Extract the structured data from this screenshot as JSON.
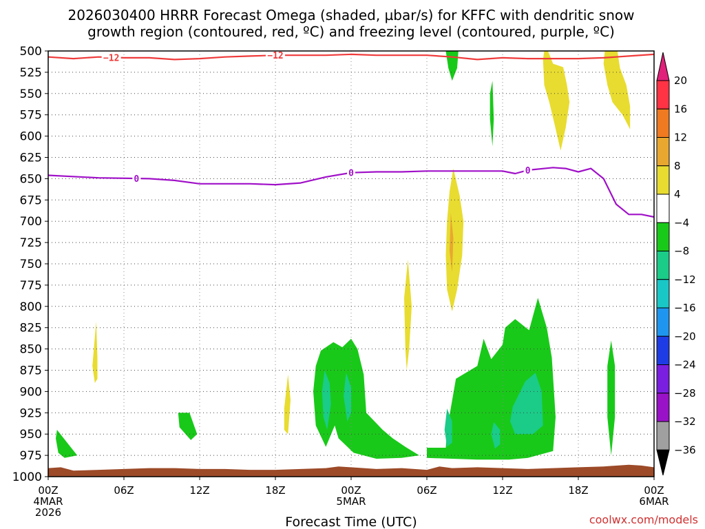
{
  "chart_data": {
    "type": "heatmap",
    "title_line1": "2026030400 HRRR Forecast Omega (shaded, µbar/s) for KFFC with dendritic snow",
    "title_line2": "growth region (contoured, red, ºC) and freezing level (contoured, purple, ºC)",
    "xlabel": "Forecast Time (UTC)",
    "credit": "coolwx.com/models",
    "x_range_hours": [
      0,
      48
    ],
    "y_range_mb": [
      500,
      1000
    ],
    "y_ticks": [
      "500",
      "525",
      "550",
      "575",
      "600",
      "625",
      "650",
      "675",
      "700",
      "725",
      "750",
      "775",
      "800",
      "825",
      "850",
      "875",
      "900",
      "925",
      "950",
      "975",
      "1000"
    ],
    "x_ticks": [
      {
        "hour": 0,
        "lines": [
          "00Z",
          "4MAR",
          "2026"
        ]
      },
      {
        "hour": 6,
        "lines": [
          "06Z"
        ]
      },
      {
        "hour": 12,
        "lines": [
          "12Z"
        ]
      },
      {
        "hour": 18,
        "lines": [
          "18Z"
        ]
      },
      {
        "hour": 24,
        "lines": [
          "00Z",
          "5MAR"
        ]
      },
      {
        "hour": 30,
        "lines": [
          "06Z"
        ]
      },
      {
        "hour": 36,
        "lines": [
          "12Z"
        ]
      },
      {
        "hour": 42,
        "lines": [
          "18Z"
        ]
      },
      {
        "hour": 48,
        "lines": [
          "00Z",
          "6MAR"
        ]
      }
    ],
    "colorbar": {
      "levels": [
        "20",
        "16",
        "12",
        "8",
        "4",
        "−4",
        "−8",
        "−12",
        "−16",
        "−20",
        "−24",
        "−28",
        "−32",
        "−36"
      ],
      "colors": [
        "#ff3344",
        "#f07a20",
        "#e8a830",
        "#e8dc30",
        "#ffffff",
        "#19c919",
        "#1acc88",
        "#19c7c7",
        "#1e96f0",
        "#1e3ce6",
        "#7a1ee0",
        "#9a12c8",
        "#a0a0a0"
      ],
      "top_arrow_color": "#e0207a",
      "bottom_arrow_color": "#000000"
    },
    "dgz_contour": {
      "label": "−12",
      "color": "#f03a3a",
      "points": [
        [
          0,
          507
        ],
        [
          2,
          509
        ],
        [
          4,
          507
        ],
        [
          6,
          508
        ],
        [
          8,
          508
        ],
        [
          10,
          510
        ],
        [
          12,
          509
        ],
        [
          14,
          507
        ],
        [
          16,
          506
        ],
        [
          18,
          505
        ],
        [
          20,
          505
        ],
        [
          22,
          505
        ],
        [
          24,
          504
        ],
        [
          26,
          505
        ],
        [
          28,
          505
        ],
        [
          30,
          505
        ],
        [
          32,
          507
        ],
        [
          34,
          510
        ],
        [
          36,
          508
        ],
        [
          38,
          509
        ],
        [
          40,
          509
        ],
        [
          42,
          509
        ],
        [
          44,
          508
        ],
        [
          46,
          506
        ],
        [
          48,
          504
        ]
      ],
      "label_hours": [
        5,
        18
      ]
    },
    "freezing_contour": {
      "label": "0",
      "color": "#a010c8",
      "points": [
        [
          0,
          646
        ],
        [
          4,
          649
        ],
        [
          8,
          650
        ],
        [
          10,
          652
        ],
        [
          12,
          656
        ],
        [
          16,
          656
        ],
        [
          18,
          657
        ],
        [
          20,
          655
        ],
        [
          22,
          648
        ],
        [
          24,
          643
        ],
        [
          26,
          642
        ],
        [
          28,
          642
        ],
        [
          30,
          641
        ],
        [
          32,
          641
        ],
        [
          34,
          641
        ],
        [
          36,
          641
        ],
        [
          37,
          644
        ],
        [
          38,
          640
        ],
        [
          40,
          637
        ],
        [
          41,
          638
        ],
        [
          42,
          642
        ],
        [
          43,
          638
        ],
        [
          44,
          650
        ],
        [
          45,
          680
        ],
        [
          46,
          692
        ],
        [
          47,
          692
        ],
        [
          48,
          695
        ]
      ],
      "label_hours": [
        7,
        24,
        38
      ]
    },
    "omega_regions": [
      {
        "level": 4,
        "color": "#e8dc30",
        "points": [
          [
            39.3,
            500
          ],
          [
            39.6,
            500
          ],
          [
            40,
            515
          ],
          [
            40.8,
            519
          ],
          [
            41.1,
            540
          ],
          [
            41.3,
            560
          ],
          [
            41.0,
            590
          ],
          [
            40.6,
            617
          ],
          [
            40.1,
            585
          ],
          [
            39.7,
            560
          ],
          [
            39.3,
            540
          ],
          [
            39.2,
            510
          ]
        ]
      },
      {
        "level": 4,
        "color": "#e8dc30",
        "points": [
          [
            44.1,
            500
          ],
          [
            45.1,
            500
          ],
          [
            45.3,
            520
          ],
          [
            45.8,
            540
          ],
          [
            46.1,
            565
          ],
          [
            46.1,
            592
          ],
          [
            45.5,
            575
          ],
          [
            44.7,
            560
          ],
          [
            44.3,
            540
          ],
          [
            44.0,
            515
          ]
        ]
      },
      {
        "level": 4,
        "color": "#e8dc30",
        "points": [
          [
            32.1,
            638
          ],
          [
            32.6,
            670
          ],
          [
            32.9,
            700
          ],
          [
            32.8,
            740
          ],
          [
            32.4,
            780
          ],
          [
            32.0,
            806
          ],
          [
            31.6,
            780
          ],
          [
            31.5,
            740
          ],
          [
            31.6,
            700
          ],
          [
            31.8,
            665
          ]
        ]
      },
      {
        "level": 8,
        "color": "#e8a830",
        "points": [
          [
            31.9,
            690
          ],
          [
            32.1,
            720
          ],
          [
            32.0,
            760
          ],
          [
            31.8,
            735
          ]
        ]
      },
      {
        "level": 4,
        "color": "#e8dc30",
        "points": [
          [
            28.5,
            745
          ],
          [
            28.8,
            800
          ],
          [
            28.6,
            850
          ],
          [
            28.4,
            875
          ],
          [
            28.3,
            850
          ],
          [
            28.2,
            790
          ]
        ]
      },
      {
        "level": 4,
        "color": "#e8dc30",
        "points": [
          [
            3.8,
            818
          ],
          [
            3.9,
            860
          ],
          [
            3.9,
            885
          ],
          [
            3.7,
            890
          ],
          [
            3.5,
            870
          ]
        ]
      },
      {
        "level": 4,
        "color": "#e8dc30",
        "points": [
          [
            19.0,
            880
          ],
          [
            19.2,
            910
          ],
          [
            19.0,
            950
          ],
          [
            18.7,
            945
          ],
          [
            18.7,
            920
          ]
        ]
      },
      {
        "level": -4,
        "color": "#19c919",
        "points": [
          [
            31.5,
            500
          ],
          [
            32.5,
            500
          ],
          [
            32.4,
            520
          ],
          [
            32.0,
            535
          ],
          [
            31.7,
            520
          ]
        ]
      },
      {
        "level": -4,
        "color": "#19c919",
        "points": [
          [
            35.2,
            535
          ],
          [
            35.3,
            580
          ],
          [
            35.2,
            612
          ],
          [
            35.0,
            580
          ],
          [
            35.0,
            550
          ]
        ]
      },
      {
        "level": -4,
        "color": "#19c919",
        "points": [
          [
            0.7,
            945
          ],
          [
            1.5,
            960
          ],
          [
            2.3,
            975
          ],
          [
            1.3,
            978
          ],
          [
            0.8,
            972
          ],
          [
            0.6,
            955
          ]
        ]
      },
      {
        "level": -4,
        "color": "#19c919",
        "points": [
          [
            10.3,
            925
          ],
          [
            11.2,
            925
          ],
          [
            11.8,
            950
          ],
          [
            11.3,
            957
          ],
          [
            10.4,
            942
          ]
        ]
      },
      {
        "level": -4,
        "color": "#19c919",
        "points": [
          [
            21.6,
            852
          ],
          [
            22.6,
            842
          ],
          [
            23.3,
            848
          ],
          [
            24.0,
            838
          ],
          [
            24.5,
            850
          ],
          [
            25.0,
            880
          ],
          [
            25.2,
            925
          ],
          [
            26.5,
            945
          ],
          [
            27.3,
            955
          ],
          [
            28.3,
            965
          ],
          [
            29.4,
            975
          ],
          [
            28.0,
            978
          ],
          [
            26.0,
            979
          ],
          [
            24.2,
            972
          ],
          [
            23.0,
            955
          ],
          [
            22.7,
            940
          ],
          [
            22.0,
            965
          ],
          [
            21.2,
            940
          ],
          [
            21.0,
            900
          ],
          [
            21.2,
            870
          ]
        ]
      },
      {
        "level": -8,
        "color": "#1acc88",
        "points": [
          [
            21.9,
            875
          ],
          [
            22.3,
            890
          ],
          [
            22.4,
            915
          ],
          [
            22.1,
            945
          ],
          [
            21.8,
            930
          ],
          [
            21.7,
            900
          ]
        ]
      },
      {
        "level": -8,
        "color": "#1acc88",
        "points": [
          [
            23.6,
            878
          ],
          [
            24.0,
            895
          ],
          [
            24.0,
            925
          ],
          [
            23.7,
            935
          ],
          [
            23.4,
            905
          ]
        ]
      },
      {
        "level": -4,
        "color": "#19c919",
        "points": [
          [
            30.0,
            966
          ],
          [
            31.5,
            966
          ],
          [
            31.6,
            945
          ],
          [
            32.3,
            885
          ],
          [
            34.0,
            870
          ],
          [
            34.5,
            838
          ],
          [
            35.1,
            862
          ],
          [
            36.0,
            845
          ],
          [
            36.2,
            825
          ],
          [
            37.0,
            815
          ],
          [
            38.1,
            828
          ],
          [
            38.8,
            790
          ],
          [
            39.5,
            825
          ],
          [
            39.9,
            860
          ],
          [
            40.2,
            930
          ],
          [
            40.0,
            970
          ],
          [
            38.0,
            978
          ],
          [
            36.5,
            980
          ],
          [
            34.0,
            980
          ],
          [
            30.0,
            978
          ]
        ]
      },
      {
        "level": -8,
        "color": "#1acc88",
        "points": [
          [
            31.6,
            920
          ],
          [
            32.0,
            935
          ],
          [
            32.0,
            960
          ],
          [
            31.6,
            965
          ],
          [
            31.4,
            945
          ]
        ]
      },
      {
        "level": -8,
        "color": "#1acc88",
        "points": [
          [
            35.3,
            936
          ],
          [
            35.8,
            945
          ],
          [
            35.8,
            962
          ],
          [
            35.4,
            967
          ],
          [
            35.1,
            950
          ]
        ]
      },
      {
        "level": -8,
        "color": "#1acc88",
        "points": [
          [
            36.8,
            918
          ],
          [
            37.8,
            888
          ],
          [
            38.6,
            878
          ],
          [
            39.1,
            900
          ],
          [
            39.2,
            940
          ],
          [
            38.4,
            950
          ],
          [
            37.0,
            950
          ],
          [
            36.6,
            935
          ]
        ]
      },
      {
        "level": -4,
        "color": "#19c919",
        "points": [
          [
            44.6,
            840
          ],
          [
            44.9,
            870
          ],
          [
            44.9,
            930
          ],
          [
            44.6,
            975
          ],
          [
            44.3,
            930
          ],
          [
            44.3,
            870
          ]
        ]
      }
    ],
    "terrain": {
      "color": "#9c4a28",
      "surface_mb": [
        [
          0,
          990
        ],
        [
          1,
          989
        ],
        [
          2,
          993
        ],
        [
          4,
          992
        ],
        [
          6,
          991
        ],
        [
          8,
          990
        ],
        [
          10,
          990
        ],
        [
          12,
          991
        ],
        [
          14,
          991
        ],
        [
          16,
          992
        ],
        [
          18,
          992
        ],
        [
          20,
          991
        ],
        [
          22,
          990
        ],
        [
          23,
          988
        ],
        [
          24,
          989
        ],
        [
          26,
          991
        ],
        [
          28,
          990
        ],
        [
          30,
          992
        ],
        [
          31,
          988
        ],
        [
          32,
          990
        ],
        [
          34,
          989
        ],
        [
          36,
          990
        ],
        [
          38,
          991
        ],
        [
          40,
          990
        ],
        [
          42,
          989
        ],
        [
          44,
          988
        ],
        [
          46,
          986
        ],
        [
          47,
          987
        ],
        [
          48,
          989
        ]
      ]
    }
  }
}
